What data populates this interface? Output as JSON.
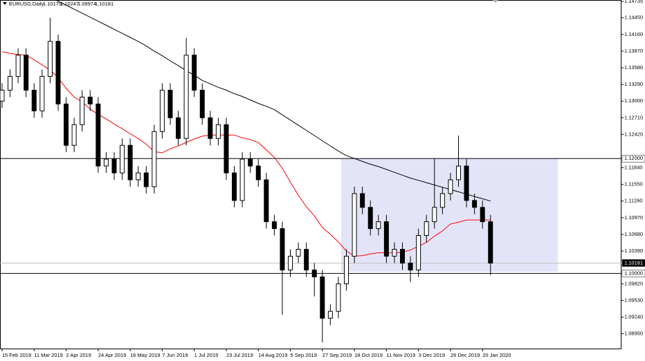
{
  "chart_data": {
    "type": "candlestick",
    "symbol": "EURUSD,Daily",
    "ohlc_header": [
      1.10179,
      1.10247,
      1.09974,
      1.10181
    ],
    "categories": [
      "15 Feb 2019",
      null,
      null,
      null,
      "11 Mar 2019",
      null,
      null,
      null,
      "2 Apr 2019",
      null,
      null,
      null,
      "24 Apr 2019",
      null,
      null,
      null,
      "16 May 2019",
      null,
      null,
      null,
      "7 Jun 2019",
      null,
      null,
      null,
      "1 Jul 2019",
      null,
      null,
      null,
      "23 Jul 2019",
      null,
      null,
      null,
      "14 Aug 2019",
      null,
      null,
      null,
      "5 Sep 2019",
      null,
      null,
      null,
      "27 Sep 2019",
      null,
      null,
      null,
      "18 Oct 2019",
      null,
      null,
      null,
      "11 Nov 2019",
      null,
      null,
      null,
      "3 Dec 2019",
      null,
      null,
      null,
      "26 Dec 2019",
      null,
      null,
      null,
      "20 Jan 2020",
      null
    ],
    "open": [
      1.13,
      1.1319,
      1.1343,
      1.138,
      1.1319,
      1.1283,
      1.1343,
      1.1404,
      1.1295,
      1.1223,
      1.1259,
      1.1307,
      1.1295,
      1.1187,
      1.1199,
      1.1175,
      1.1223,
      1.1163,
      1.1175,
      1.1151,
      1.1247,
      1.1319,
      1.1271,
      1.1235,
      1.138,
      1.1319,
      1.1271,
      1.1235,
      1.1259,
      1.1175,
      1.1127,
      1.1199,
      1.1187,
      1.1163,
      1.109,
      1.1078,
      1.1006,
      1.103,
      1.1042,
      1.1006,
      1.0994,
      1.0922,
      1.0934,
      1.0982,
      1.103,
      1.1139,
      1.1115,
      1.1078,
      1.109,
      1.103,
      1.1042,
      1.1018,
      1.1006,
      1.1066,
      1.109,
      1.1115,
      1.1139,
      1.1163,
      1.1187,
      1.1127,
      1.1115,
      1.109
    ],
    "high": [
      1.1331,
      1.1355,
      1.1392,
      1.1392,
      1.1331,
      1.1355,
      1.1445,
      1.1416,
      1.1307,
      1.1271,
      1.1319,
      1.1319,
      1.1307,
      1.1211,
      1.1211,
      1.1235,
      1.1235,
      1.1187,
      1.1187,
      1.1259,
      1.1331,
      1.1331,
      1.1283,
      1.141,
      1.1392,
      1.1331,
      1.1283,
      1.1271,
      1.1271,
      1.1187,
      1.1211,
      1.1211,
      1.1199,
      1.1175,
      1.1102,
      1.109,
      1.1042,
      1.1054,
      1.1054,
      1.1018,
      1.1006,
      1.0946,
      1.0994,
      1.1042,
      1.1151,
      1.1151,
      1.1127,
      1.1102,
      1.1102,
      1.1054,
      1.1054,
      1.103,
      1.1078,
      1.1102,
      1.12,
      1.1151,
      1.1175,
      1.124,
      1.1199,
      1.1139,
      1.1127,
      1.1102
    ],
    "low": [
      1.1288,
      1.1307,
      1.1331,
      1.1307,
      1.1271,
      1.1271,
      1.1331,
      1.1283,
      1.1211,
      1.1211,
      1.1247,
      1.1283,
      1.1175,
      1.1175,
      1.1163,
      1.1163,
      1.1151,
      1.1151,
      1.1139,
      1.1139,
      1.1235,
      1.1259,
      1.1223,
      1.1223,
      1.1307,
      1.1259,
      1.1223,
      1.1223,
      1.1163,
      1.1115,
      1.1115,
      1.1175,
      1.1151,
      1.1078,
      1.1066,
      1.0928,
      1.0994,
      1.1018,
      1.0994,
      1.096,
      1.088,
      1.091,
      1.0922,
      1.097,
      1.1018,
      1.1103,
      1.1066,
      1.1066,
      1.1018,
      1.1018,
      1.1006,
      1.0985,
      1.0994,
      1.1054,
      1.1078,
      1.1103,
      1.1127,
      1.1151,
      1.1115,
      1.1103,
      1.1078,
      1.0997
    ],
    "close": [
      1.1319,
      1.1343,
      1.138,
      1.1319,
      1.1283,
      1.1343,
      1.1404,
      1.1295,
      1.1223,
      1.1259,
      1.1307,
      1.1295,
      1.1187,
      1.1199,
      1.1175,
      1.1223,
      1.1163,
      1.1175,
      1.1151,
      1.1247,
      1.1319,
      1.1271,
      1.1235,
      1.138,
      1.1319,
      1.1271,
      1.1235,
      1.1259,
      1.1175,
      1.1127,
      1.1199,
      1.1187,
      1.1163,
      1.109,
      1.1078,
      1.1006,
      1.103,
      1.1042,
      1.1006,
      1.0994,
      1.0922,
      1.0934,
      1.0982,
      1.103,
      1.1139,
      1.1115,
      1.1078,
      1.109,
      1.103,
      1.1042,
      1.1018,
      1.1006,
      1.1066,
      1.109,
      1.1115,
      1.1139,
      1.1163,
      1.1187,
      1.1127,
      1.1115,
      1.109,
      1.1018
    ],
    "candle_color": "#000000",
    "moving_averages": [
      {
        "color": "#000000",
        "values": [
          1.1523,
          1.1516,
          1.1509,
          1.1502,
          1.1495,
          1.1488,
          1.1481,
          1.1474,
          1.1467,
          1.146,
          1.1453,
          1.1446,
          1.1439,
          1.1432,
          1.1425,
          1.1418,
          1.1411,
          1.1404,
          1.1396,
          1.1387,
          1.1379,
          1.137,
          1.1362,
          1.1353,
          1.1345,
          1.1336,
          1.133,
          1.1324,
          1.1319,
          1.1313,
          1.1308,
          1.1302,
          1.1296,
          1.1291,
          1.1285,
          1.1276,
          1.1267,
          1.1258,
          1.1249,
          1.124,
          1.1231,
          1.1222,
          1.1213,
          1.1205,
          1.12,
          1.1195,
          1.119,
          1.1186,
          1.1181,
          1.1176,
          1.1171,
          1.1166,
          1.1162,
          1.1158,
          1.1154,
          1.115,
          1.1146,
          1.1142,
          1.1138,
          1.1134,
          1.113,
          1.1126
        ]
      },
      {
        "color": "#ff0000",
        "values": [
          1.1386,
          1.1383,
          1.1381,
          1.138,
          1.1372,
          1.1363,
          1.1354,
          1.1341,
          1.1322,
          1.1307,
          1.1299,
          1.1286,
          1.1277,
          1.1269,
          1.126,
          1.1252,
          1.1243,
          1.1235,
          1.1225,
          1.1212,
          1.121,
          1.1217,
          1.1222,
          1.1228,
          1.1234,
          1.1239,
          1.1241,
          1.1241,
          1.1241,
          1.1241,
          1.1236,
          1.1233,
          1.1228,
          1.1215,
          1.1202,
          1.1183,
          1.1159,
          1.1136,
          1.1116,
          1.11,
          1.108,
          1.1068,
          1.1055,
          1.1039,
          1.103,
          1.1031,
          1.1034,
          1.1036,
          1.1036,
          1.1036,
          1.1037,
          1.1041,
          1.1047,
          1.1054,
          1.1065,
          1.1074,
          1.1086,
          1.1089,
          1.1093,
          1.1093,
          1.1093,
          1.1093
        ]
      }
    ],
    "zone": {
      "high": 1.12,
      "low": 1.1003,
      "color": "#e4e4f8"
    },
    "price_lines": [
      {
        "value": 1.12,
        "label": "1.12000"
      },
      {
        "value": 1.1,
        "label": "1.10000"
      }
    ],
    "current_price": 1.10181,
    "ylim": [
      1.0868,
      1.1476
    ],
    "yticks": [
      1.14735,
      {
        "value": 1.1445,
        "label": "1.14450"
      },
      {
        "value": 1.1416,
        "label": "1.14160"
      },
      {
        "value": 1.1387,
        "label": "1.13870"
      },
      {
        "value": 1.1358,
        "label": "1.13580"
      },
      {
        "value": 1.1329,
        "label": "1.13290"
      },
      {
        "value": 1.13,
        "label": "1.13000"
      },
      {
        "value": 1.1271,
        "label": "1.12710"
      },
      {
        "value": 1.1242,
        "label": "1.12420"
      },
      {
        "value": 1.1184,
        "label": "1.11840"
      },
      {
        "value": 1.1155,
        "label": "1.11550"
      },
      {
        "value": 1.1126,
        "label": "1.11260"
      },
      {
        "value": 1.1097,
        "label": "1.10970"
      },
      {
        "value": 1.1068,
        "label": "1.10680"
      },
      {
        "value": 1.1039,
        "label": "1.10390"
      },
      {
        "value": 1.0982,
        "label": "1.09820"
      },
      {
        "value": 1.0953,
        "label": "1.09530"
      },
      {
        "value": 1.0924,
        "label": "1.09240"
      },
      {
        "value": 1.0895,
        "label": "1.08950"
      }
    ]
  }
}
